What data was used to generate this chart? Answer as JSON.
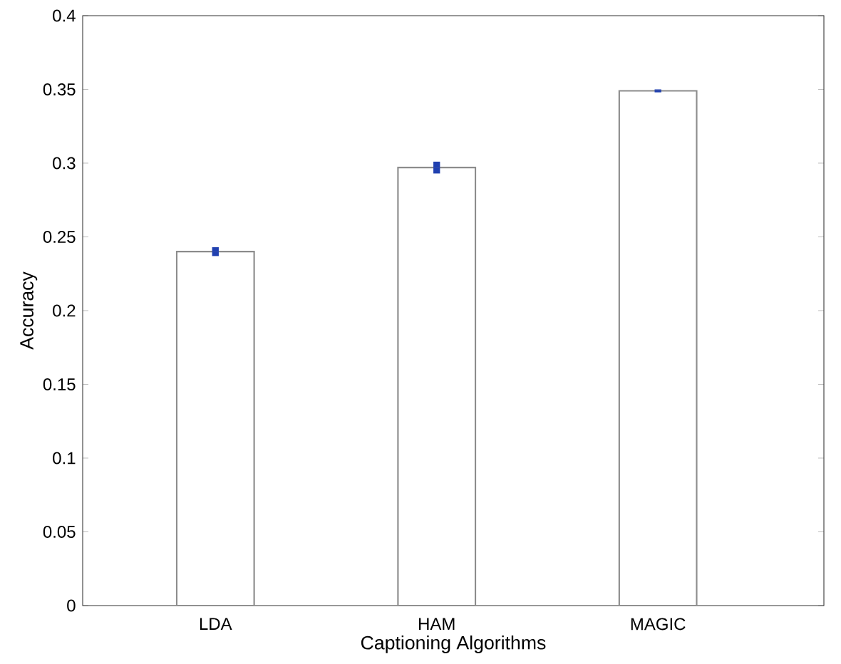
{
  "chart_data": {
    "type": "bar",
    "xlabel": "Captioning Algorithms",
    "ylabel": "Accuracy",
    "categories": [
      "LDA",
      "HAM",
      "MAGIC"
    ],
    "values": [
      0.24,
      0.297,
      0.349
    ],
    "errors": [
      0.003,
      0.004,
      0.001
    ],
    "color": "#ffffff",
    "ylim": [
      0,
      0.4
    ],
    "yticks": [
      0,
      0.05,
      0.1,
      0.15,
      0.2,
      0.25,
      0.3,
      0.35,
      0.4
    ],
    "grid": false
  }
}
